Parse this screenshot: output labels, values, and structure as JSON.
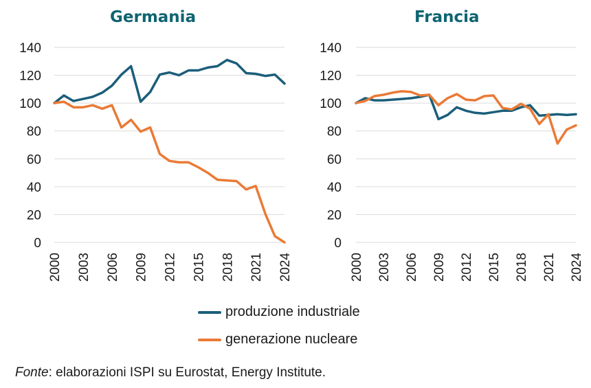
{
  "colors": {
    "title": "#0e6470",
    "industrial": "#1b5e7a",
    "nuclear": "#ea7a36",
    "grid": "#d9d9d9"
  },
  "legend": [
    "produzione industriale",
    "generazione nucleare"
  ],
  "source": {
    "label": "Fonte",
    "text": ": elaborazioni ISPI su Eurostat,  Energy Institute."
  },
  "chart_data": [
    {
      "type": "line",
      "title": "Germania",
      "y_ticks": [
        "0",
        "20",
        "40",
        "60",
        "80",
        "100",
        "120",
        "140"
      ],
      "x_ticks": [
        "2000",
        "2003",
        "2006",
        "2009",
        "2012",
        "2015",
        "2018",
        "2021",
        "2024"
      ],
      "ylim": [
        0,
        140
      ],
      "xlim": [
        2000,
        2024
      ],
      "grid": true,
      "x": [
        2000,
        2001,
        2002,
        2003,
        2004,
        2005,
        2006,
        2007,
        2008,
        2009,
        2010,
        2011,
        2012,
        2013,
        2014,
        2015,
        2016,
        2017,
        2018,
        2019,
        2020,
        2021,
        2022,
        2023,
        2024
      ],
      "series": [
        {
          "name": "produzione industriale",
          "color_key": "industrial",
          "values": [
            100,
            105.5,
            101.5,
            103,
            104.5,
            107.5,
            112.5,
            120.5,
            126.5,
            101,
            108,
            120.5,
            122,
            120,
            123.5,
            123.5,
            125.5,
            126.5,
            131,
            128.5,
            121.5,
            121,
            119.5,
            120.5,
            114
          ]
        },
        {
          "name": "generazione nucleare",
          "color_key": "nuclear",
          "values": [
            100,
            101,
            97,
            97,
            98.5,
            96,
            98.5,
            82.5,
            88,
            79.5,
            82.5,
            63.5,
            58.5,
            57.5,
            57.5,
            54,
            50,
            45,
            44.5,
            44,
            38,
            40.5,
            20.5,
            4.5,
            0
          ]
        }
      ]
    },
    {
      "type": "line",
      "title": "Francia",
      "y_ticks": [
        "0",
        "20",
        "40",
        "60",
        "80",
        "100",
        "120",
        "140"
      ],
      "x_ticks": [
        "2000",
        "2003",
        "2006",
        "2009",
        "2012",
        "2015",
        "2018",
        "2021",
        "2024"
      ],
      "ylim": [
        0,
        140
      ],
      "xlim": [
        2000,
        2024
      ],
      "grid": true,
      "x": [
        2000,
        2001,
        2002,
        2003,
        2004,
        2005,
        2006,
        2007,
        2008,
        2009,
        2010,
        2011,
        2012,
        2013,
        2014,
        2015,
        2016,
        2017,
        2018,
        2019,
        2020,
        2021,
        2022,
        2023,
        2024
      ],
      "series": [
        {
          "name": "produzione industriale",
          "color_key": "industrial",
          "values": [
            100,
            103.5,
            102,
            102,
            102.5,
            103,
            103.5,
            104.5,
            106,
            88.5,
            91.5,
            97,
            94.5,
            93,
            92.5,
            93.5,
            94.5,
            94.5,
            97,
            98.5,
            91,
            91.5,
            92,
            91.5,
            92
          ]
        },
        {
          "name": "generazione nucleare",
          "color_key": "nuclear",
          "values": [
            100,
            101.5,
            105,
            106,
            107.5,
            108.5,
            108,
            105.5,
            106,
            98.5,
            103.5,
            106.5,
            102.5,
            102,
            105,
            105.5,
            96.5,
            95.5,
            99.5,
            96,
            85,
            92,
            71,
            81,
            84
          ]
        }
      ]
    }
  ]
}
